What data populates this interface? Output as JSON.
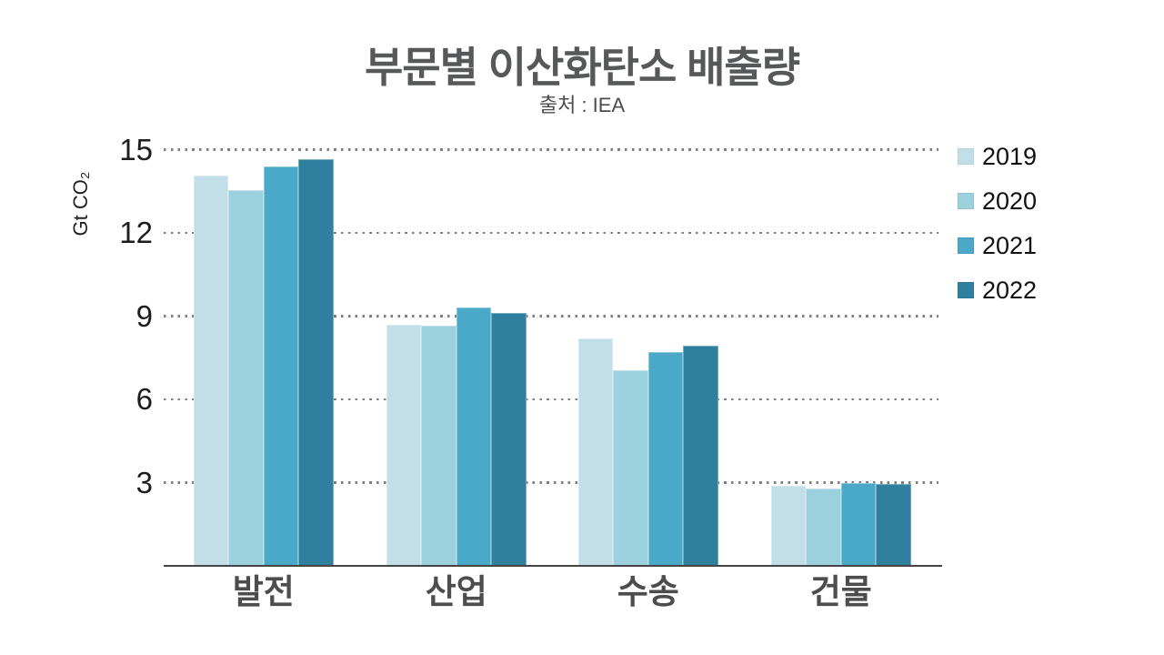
{
  "chart_data": {
    "type": "bar",
    "title": "부문별 이산화탄소 배출량",
    "subtitle": "출처 : IEA",
    "ylabel": "Gt CO₂",
    "xlabel": "",
    "categories": [
      "발전",
      "산업",
      "수송",
      "건물"
    ],
    "series": [
      {
        "name": "2019",
        "color": "#c2dfe9",
        "values": [
          14.05,
          8.7,
          8.2,
          2.9
        ]
      },
      {
        "name": "2020",
        "color": "#9bd0dd",
        "values": [
          13.55,
          8.65,
          7.05,
          2.8
        ]
      },
      {
        "name": "2021",
        "color": "#4aa9c8",
        "values": [
          14.4,
          9.3,
          7.7,
          3.0
        ]
      },
      {
        "name": "2022",
        "color": "#2f809e",
        "values": [
          14.65,
          9.1,
          7.95,
          2.95
        ]
      }
    ],
    "yticks": [
      3,
      6,
      9,
      12,
      15
    ],
    "ylim": [
      0,
      15
    ],
    "grid": "horizontal dotted",
    "grid_color": "#7e7e7e",
    "axis_color": "#454545",
    "legend_position": "right",
    "background_color": "#ffffff"
  }
}
